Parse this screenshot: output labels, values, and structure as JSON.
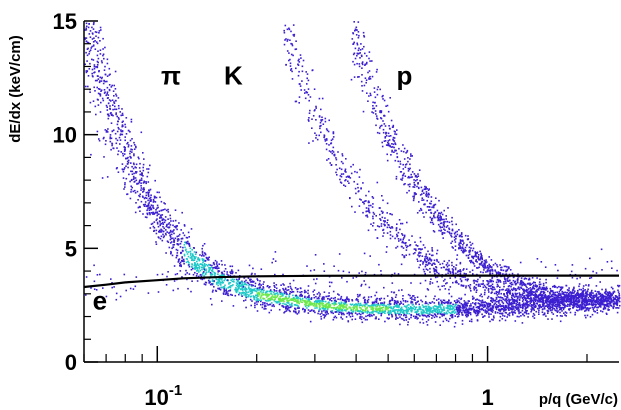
{
  "chart_data": {
    "type": "scatter",
    "title": "",
    "xlabel": "p/q (GeV/c)",
    "ylabel": "dE/dx (keV/cm)",
    "x_scale": "log",
    "xlim": [
      0.06,
      2.5
    ],
    "ylim": [
      0,
      15
    ],
    "grid": false,
    "legend": "none",
    "x_ticks": [
      {
        "value": 0.1,
        "label": "10",
        "exponent": "-1"
      },
      {
        "value": 1,
        "label": "1",
        "exponent": ""
      }
    ],
    "y_ticks": [
      {
        "value": 0,
        "label": "0"
      },
      {
        "value": 5,
        "label": "5"
      },
      {
        "value": 10,
        "label": "10"
      },
      {
        "value": 15,
        "label": "15"
      }
    ],
    "particle_labels": [
      {
        "text": "π",
        "x": 0.11,
        "y": 12.2
      },
      {
        "text": "K",
        "x": 0.17,
        "y": 12.2
      },
      {
        "text": "p",
        "x": 0.56,
        "y": 12.2
      },
      {
        "text": "e",
        "x": 0.067,
        "y": 2.3
      }
    ],
    "bands": [
      {
        "name": "π",
        "x": [
          0.06,
          0.07,
          0.08,
          0.09,
          0.1,
          0.12,
          0.15,
          0.2,
          0.3,
          0.4,
          0.6,
          1.0,
          1.5,
          2.5
        ],
        "y": [
          15,
          11.5,
          9.2,
          7.6,
          6.4,
          4.9,
          3.7,
          3.0,
          2.55,
          2.4,
          2.35,
          2.4,
          2.6,
          2.8
        ]
      },
      {
        "name": "K",
        "x": [
          0.24,
          0.28,
          0.32,
          0.36,
          0.4,
          0.45,
          0.5,
          0.6,
          0.7,
          0.8,
          0.9,
          1.0,
          1.2,
          1.5,
          2.0
        ],
        "y": [
          15,
          12,
          10,
          8.6,
          7.6,
          6.6,
          5.9,
          4.9,
          4.2,
          3.8,
          3.5,
          3.3,
          3.0,
          2.8,
          2.7
        ]
      },
      {
        "name": "p",
        "x": [
          0.38,
          0.42,
          0.46,
          0.5,
          0.55,
          0.6,
          0.7,
          0.8,
          0.9,
          1.0,
          1.2,
          1.5,
          2.0,
          2.5
        ],
        "y": [
          15,
          13,
          11.4,
          10.1,
          8.8,
          7.9,
          6.4,
          5.4,
          4.7,
          4.2,
          3.6,
          3.1,
          2.8,
          2.7
        ]
      },
      {
        "name": "e",
        "x": [
          0.06,
          0.1,
          0.2,
          0.4,
          1.0,
          2.5
        ],
        "y": [
          3.3,
          3.6,
          3.75,
          3.8,
          3.8,
          3.8
        ]
      }
    ],
    "electron_curve": {
      "x": [
        0.06,
        0.07,
        0.08,
        0.1,
        0.12,
        0.15,
        0.2,
        0.3,
        0.5,
        1.0,
        2.5
      ],
      "y": [
        3.3,
        3.4,
        3.5,
        3.6,
        3.68,
        3.73,
        3.77,
        3.79,
        3.8,
        3.8,
        3.8
      ]
    },
    "colors": {
      "low_density": "#3c1fd0",
      "mid_density": "#1ec8c8",
      "high_density": "#6de84a",
      "curve": "#000000"
    }
  }
}
